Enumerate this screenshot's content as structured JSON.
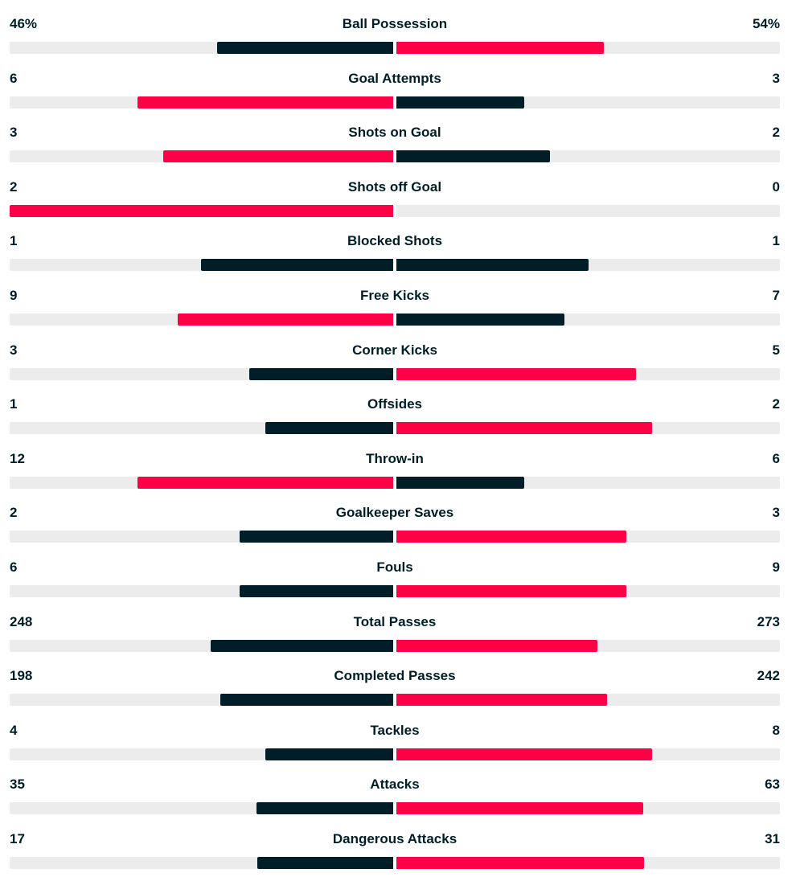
{
  "colors": {
    "winner": "#ff0046",
    "loser": "#001e28",
    "track": "#ececec"
  },
  "stats": [
    {
      "name": "Ball Possession",
      "home": "46%",
      "away": "54%",
      "home_share": 0.46,
      "away_share": 0.54
    },
    {
      "name": "Goal Attempts",
      "home": "6",
      "away": "3",
      "home_share": 0.667,
      "away_share": 0.333
    },
    {
      "name": "Shots on Goal",
      "home": "3",
      "away": "2",
      "home_share": 0.6,
      "away_share": 0.4
    },
    {
      "name": "Shots off Goal",
      "home": "2",
      "away": "0",
      "home_share": 1.0,
      "away_share": 0.0
    },
    {
      "name": "Blocked Shots",
      "home": "1",
      "away": "1",
      "home_share": 0.5,
      "away_share": 0.5
    },
    {
      "name": "Free Kicks",
      "home": "9",
      "away": "7",
      "home_share": 0.5625,
      "away_share": 0.4375
    },
    {
      "name": "Corner Kicks",
      "home": "3",
      "away": "5",
      "home_share": 0.375,
      "away_share": 0.625
    },
    {
      "name": "Offsides",
      "home": "1",
      "away": "2",
      "home_share": 0.333,
      "away_share": 0.667
    },
    {
      "name": "Throw-in",
      "home": "12",
      "away": "6",
      "home_share": 0.667,
      "away_share": 0.333
    },
    {
      "name": "Goalkeeper Saves",
      "home": "2",
      "away": "3",
      "home_share": 0.4,
      "away_share": 0.6
    },
    {
      "name": "Fouls",
      "home": "6",
      "away": "9",
      "home_share": 0.4,
      "away_share": 0.6
    },
    {
      "name": "Total Passes",
      "home": "248",
      "away": "273",
      "home_share": 0.476,
      "away_share": 0.524
    },
    {
      "name": "Completed Passes",
      "home": "198",
      "away": "242",
      "home_share": 0.45,
      "away_share": 0.55
    },
    {
      "name": "Tackles",
      "home": "4",
      "away": "8",
      "home_share": 0.333,
      "away_share": 0.667
    },
    {
      "name": "Attacks",
      "home": "35",
      "away": "63",
      "home_share": 0.357,
      "away_share": 0.643
    },
    {
      "name": "Dangerous Attacks",
      "home": "17",
      "away": "31",
      "home_share": 0.354,
      "away_share": 0.646
    }
  ]
}
